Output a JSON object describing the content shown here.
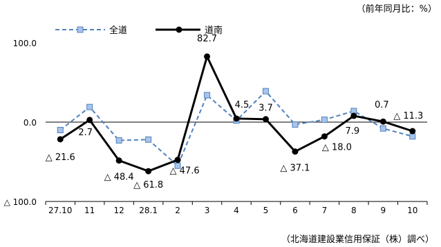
{
  "unit_note": "（前年同月比：%）",
  "source_note": "（北海道建設業信用保証（株）調べ）",
  "chart_data": {
    "type": "line",
    "categories": [
      "27.10",
      "11",
      "12",
      "28.1",
      "2",
      "3",
      "4",
      "5",
      "6",
      "7",
      "8",
      "9",
      "10"
    ],
    "y_tick_labels": [
      "100.0",
      "0.0",
      "△ 100.0"
    ],
    "y_ticks": [
      100,
      0,
      -100
    ],
    "ylim": [
      -100,
      100
    ],
    "legend_position": "top-left",
    "series": [
      {
        "name": "全道",
        "color": "#4f81bd",
        "marker_fill": "#a9c4ea",
        "values": [
          -10,
          19,
          -23,
          -22,
          -55,
          34,
          2,
          39,
          -3,
          3,
          14,
          -8,
          -18
        ]
      },
      {
        "name": "道南",
        "color": "#000000",
        "values": [
          -21.6,
          2.7,
          -48.4,
          -61.8,
          -47.6,
          82.7,
          4.5,
          3.7,
          -37.1,
          -18.0,
          7.9,
          0.7,
          -11.3
        ],
        "data_labels": [
          "△ 21.6",
          "2.7",
          "△ 48.4",
          "△ 61.8",
          "△ 47.6",
          "82.7",
          "4.5",
          "3.7",
          "△ 37.1",
          "△ 18.0",
          "7.9",
          "0.7",
          "△ 11.3"
        ]
      }
    ]
  }
}
